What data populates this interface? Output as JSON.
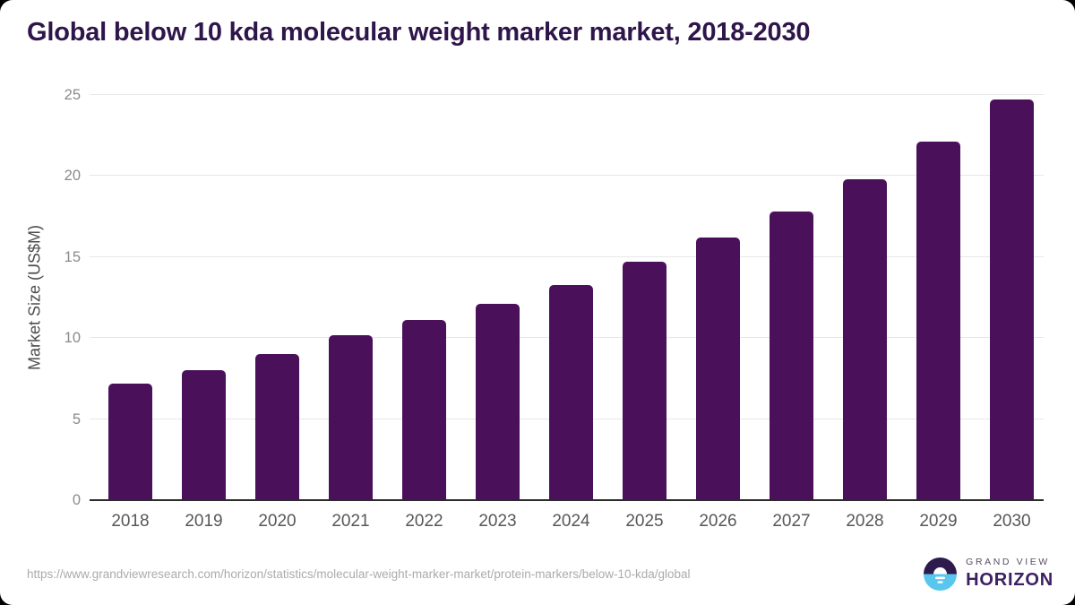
{
  "title": "Global below 10 kda molecular weight marker market, 2018-2030",
  "footer": {
    "source_url": "https://www.grandviewresearch.com/horizon/statistics/molecular-weight-marker-market/protein-markers/below-10-kda/global",
    "logo": {
      "icon": "grand-view-horizon-globe-icon",
      "line1": "GRAND VIEW",
      "line2": "HORIZON"
    }
  },
  "colors": {
    "bar": "#4a105a",
    "title": "#2e154a",
    "gridline": "#e7e7e7",
    "axis_line": "#2b2b2b",
    "y_tick_label": "#8a8a8a",
    "x_tick_label": "#57575a",
    "url_text": "#ababab",
    "logo_dark_purple": "#2e1b4e",
    "logo_light_blue": "#59c6f0"
  },
  "chart_data": {
    "type": "bar",
    "title": "Global below 10 kda molecular weight marker market, 2018-2030",
    "xlabel": "",
    "ylabel": "Market Size (US$M)",
    "categories": [
      "2018",
      "2019",
      "2020",
      "2021",
      "2022",
      "2023",
      "2024",
      "2025",
      "2026",
      "2027",
      "2028",
      "2029",
      "2030"
    ],
    "values": [
      7.2,
      8.0,
      9.0,
      10.2,
      11.1,
      12.1,
      13.3,
      14.7,
      16.2,
      17.8,
      19.8,
      22.1,
      24.7
    ],
    "ylim": [
      0,
      25
    ],
    "yticks": [
      0,
      5,
      10,
      15,
      20,
      25
    ],
    "grid": "horizontal",
    "legend": "none",
    "bar_color": "#4a105a"
  }
}
